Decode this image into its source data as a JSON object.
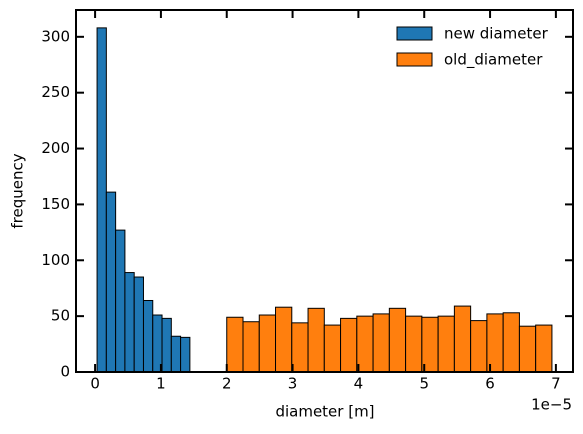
{
  "chart_data": {
    "type": "histogram",
    "xlabel": "diameter [m]",
    "ylabel": "frequency",
    "x_offset_label": "1e−5",
    "xlim": [
      -2.9e-06,
      7.26e-05
    ],
    "ylim": [
      0,
      324
    ],
    "xticks": [
      0,
      {
        "value": 1e-05,
        "label": "1"
      },
      {
        "value": 2e-05,
        "label": "2"
      },
      {
        "value": 3e-05,
        "label": "3"
      },
      {
        "value": 4e-05,
        "label": "4"
      },
      {
        "value": 5e-05,
        "label": "5"
      },
      {
        "value": 6e-05,
        "label": "6"
      },
      {
        "value": 7e-05,
        "label": "7"
      }
    ],
    "yticks": [
      0,
      50,
      100,
      150,
      200,
      250,
      300
    ],
    "legend": "upper right",
    "series": [
      {
        "name": "new diameter",
        "color": "#1f77b4",
        "bins": [
          3e-07,
          1.71e-06,
          3.12e-06,
          4.53e-06,
          5.94e-06,
          7.35e-06,
          8.76e-06,
          1.017e-05,
          1.158e-05,
          1.299e-05,
          1.44e-05
        ],
        "values": [
          308,
          161,
          127,
          89,
          85,
          64,
          51,
          48,
          32,
          31
        ]
      },
      {
        "name": "old_diameter",
        "color": "#ff7f0e",
        "bins": [
          2e-05,
          2.247e-05,
          2.494e-05,
          2.741e-05,
          2.988e-05,
          3.235e-05,
          3.482e-05,
          3.729e-05,
          3.976e-05,
          4.223e-05,
          4.47e-05,
          4.717e-05,
          4.964e-05,
          5.211e-05,
          5.458e-05,
          5.705e-05,
          5.952e-05,
          6.199e-05,
          6.446e-05,
          6.693e-05,
          6.94e-05
        ],
        "values": [
          49,
          45,
          51,
          58,
          44,
          57,
          42,
          48,
          50,
          52,
          57,
          50,
          49,
          50,
          59,
          46,
          52,
          53,
          41,
          42
        ]
      }
    ]
  }
}
